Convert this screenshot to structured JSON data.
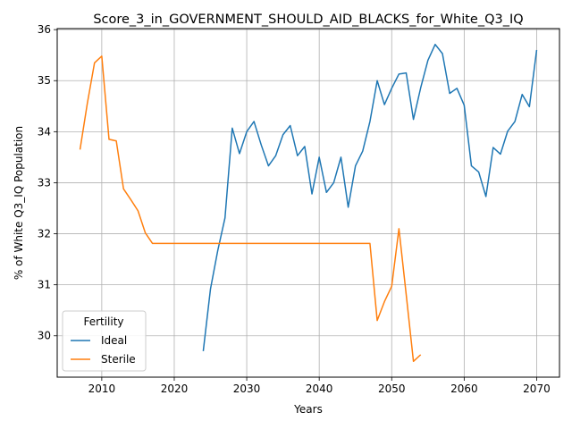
{
  "chart_data": {
    "type": "line",
    "title": "Score_3_in_GOVERNMENT_SHOULD_AID_BLACKS_for_White_Q3_IQ",
    "xlabel": "Years",
    "ylabel": "% of White Q3_IQ Population",
    "xlim": [
      2003.85,
      2073.15
    ],
    "ylim": [
      29.19,
      36.02
    ],
    "xticks": [
      2010,
      2020,
      2030,
      2040,
      2050,
      2060,
      2070
    ],
    "yticks": [
      30,
      31,
      32,
      33,
      34,
      35,
      36
    ],
    "grid": true,
    "legend": {
      "title": "Fertility",
      "placement": "lower-left"
    },
    "series": [
      {
        "name": "Ideal",
        "color": "#1f77b4",
        "x": [
          2024,
          2025,
          2026,
          2027,
          2028,
          2029,
          2030,
          2031,
          2032,
          2033,
          2034,
          2035,
          2036,
          2037,
          2038,
          2039,
          2040,
          2041,
          2042,
          2043,
          2044,
          2045,
          2046,
          2047,
          2048,
          2049,
          2050,
          2051,
          2052,
          2053,
          2054,
          2055,
          2056,
          2057,
          2058,
          2059,
          2060,
          2061,
          2062,
          2063,
          2064,
          2065,
          2066,
          2067,
          2068,
          2069,
          2070
        ],
        "y": [
          29.7,
          30.92,
          31.67,
          32.31,
          34.07,
          33.57,
          34.0,
          34.2,
          33.74,
          33.33,
          33.53,
          33.94,
          34.12,
          33.53,
          33.71,
          32.78,
          33.5,
          32.81,
          33.0,
          33.5,
          32.52,
          33.33,
          33.62,
          34.2,
          35.0,
          34.53,
          34.85,
          35.13,
          35.15,
          34.24,
          34.86,
          35.4,
          35.71,
          35.53,
          34.75,
          34.85,
          34.52,
          33.33,
          33.21,
          32.73,
          33.69,
          33.56,
          34.01,
          34.2,
          34.73,
          34.49,
          35.6
        ]
      },
      {
        "name": "Sterile",
        "color": "#ff7f0e",
        "x": [
          2007,
          2008,
          2009,
          2010,
          2011,
          2012,
          2013,
          2014,
          2015,
          2016,
          2017,
          2018,
          2019,
          2020,
          2021,
          2022,
          2023,
          2024,
          2025,
          2026,
          2027,
          2028,
          2029,
          2030,
          2031,
          2032,
          2033,
          2034,
          2035,
          2036,
          2037,
          2038,
          2039,
          2040,
          2041,
          2042,
          2043,
          2044,
          2045,
          2046,
          2047,
          2048,
          2049,
          2050,
          2051,
          2052,
          2053,
          2054
        ],
        "y": [
          33.65,
          34.55,
          35.35,
          35.48,
          33.85,
          33.82,
          32.88,
          32.67,
          32.45,
          32.02,
          31.81,
          31.81,
          31.81,
          31.81,
          31.81,
          31.81,
          31.81,
          31.81,
          31.81,
          31.81,
          31.81,
          31.81,
          31.81,
          31.81,
          31.81,
          31.81,
          31.81,
          31.81,
          31.81,
          31.81,
          31.81,
          31.81,
          31.81,
          31.81,
          31.81,
          31.81,
          31.81,
          31.81,
          31.81,
          31.81,
          31.81,
          30.3,
          30.67,
          30.97,
          32.1,
          30.81,
          29.5,
          29.63
        ]
      }
    ]
  }
}
